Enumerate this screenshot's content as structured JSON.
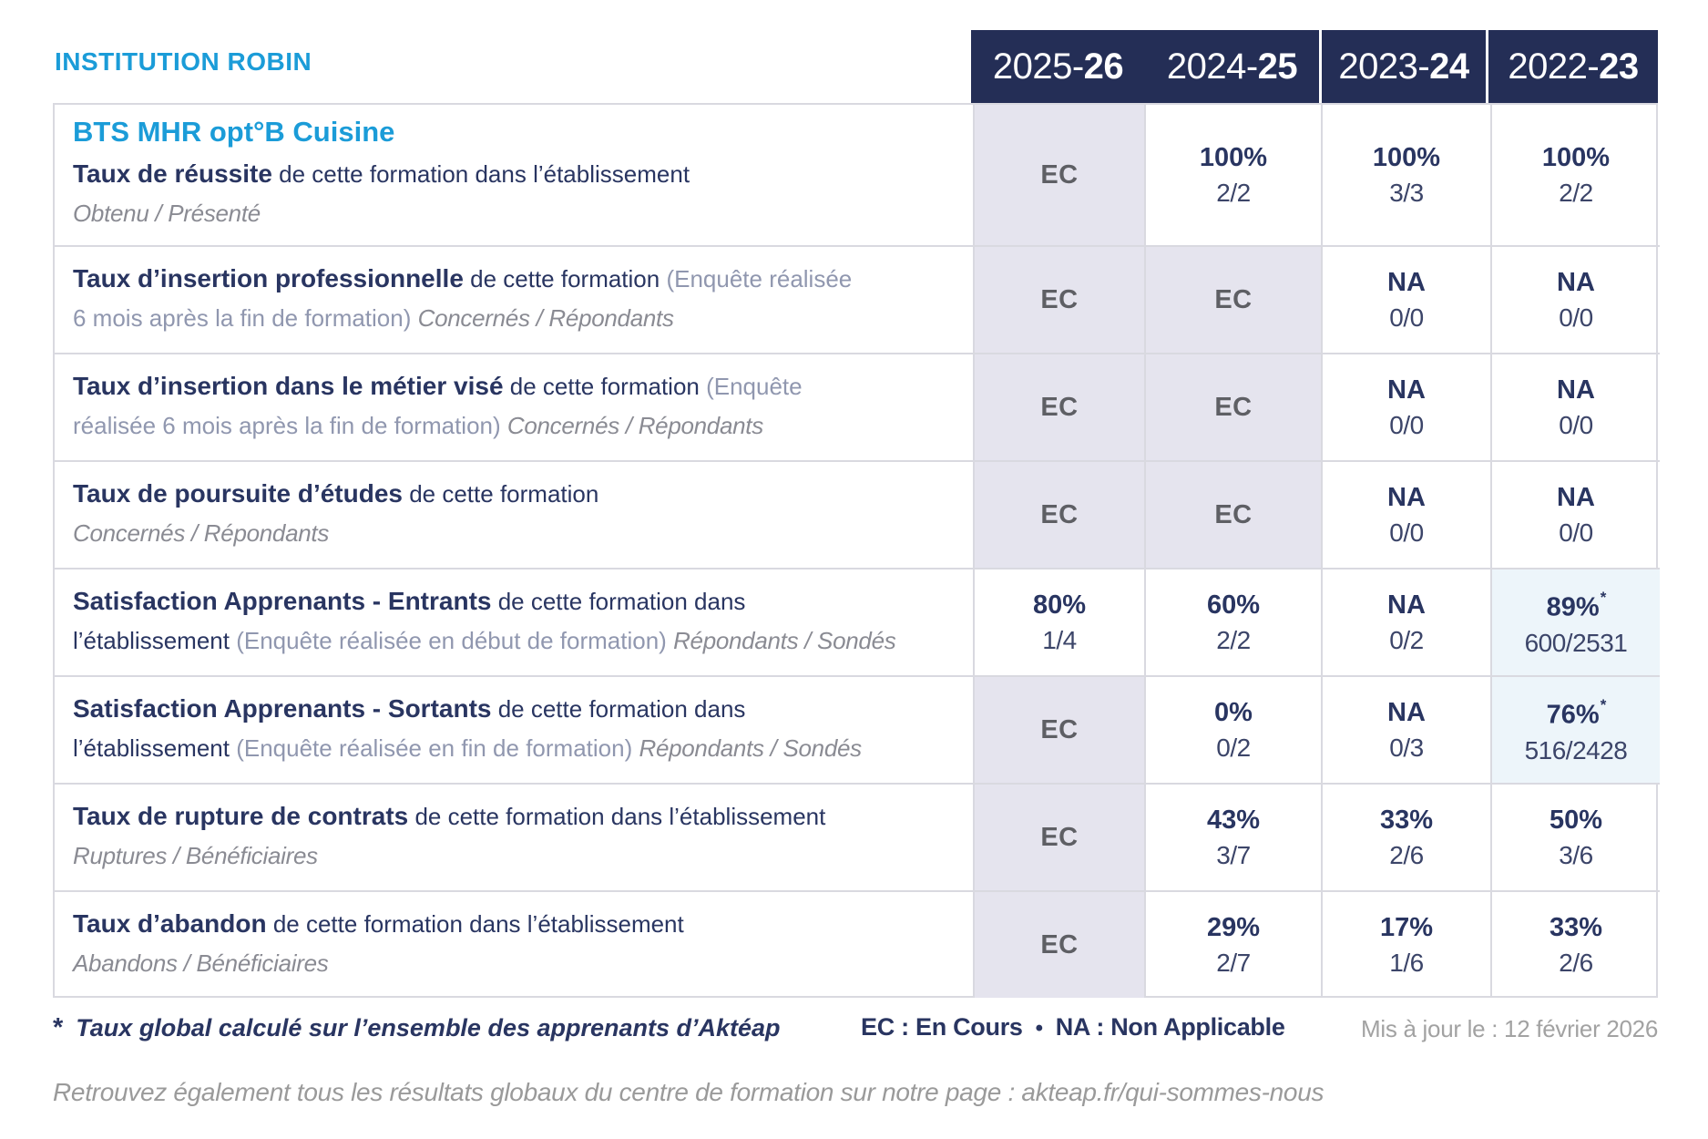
{
  "page": {
    "institution": "INSTITUTION ROBIN"
  },
  "colors": {
    "accent_blue": "#1b9cd8",
    "navy_text": "#293561",
    "header_bg": "#242e56",
    "ec_cell_bg": "#e5e4ee",
    "ec_text": "#5e5f64",
    "highlight_cell_bg": "#edf5fa",
    "border": "#d9d9e0"
  },
  "header": {
    "years": [
      {
        "prefix": "2025-",
        "suffix": "26"
      },
      {
        "prefix": "2024-",
        "suffix": "25"
      },
      {
        "prefix": "2023-",
        "suffix": "24"
      },
      {
        "prefix": "2022-",
        "suffix": "23"
      }
    ]
  },
  "rows": [
    {
      "name": "taux-de-reussite",
      "program": "BTS MHR opt°B Cuisine",
      "lines": [
        [
          {
            "t": "Taux de réussite",
            "s": "b"
          },
          {
            "t": " de cette formation dans l’établissement",
            "s": "r"
          }
        ],
        [
          {
            "t": "Obtenu / Présenté",
            "s": "i"
          }
        ]
      ],
      "cells": [
        {
          "type": "ec",
          "text": "EC"
        },
        {
          "type": "val",
          "pct": "100%",
          "frac": "2/2"
        },
        {
          "type": "val",
          "pct": "100%",
          "frac": "3/3"
        },
        {
          "type": "val",
          "pct": "100%",
          "frac": "2/2"
        }
      ]
    },
    {
      "name": "taux-insertion-professionnelle",
      "lines": [
        [
          {
            "t": "Taux d’insertion professionnelle",
            "s": "b"
          },
          {
            "t": " de cette formation ",
            "s": "r"
          },
          {
            "t": "(Enquête réalisée",
            "s": "m"
          }
        ],
        [
          {
            "t": "6 mois après la fin de formation) ",
            "s": "m"
          },
          {
            "t": "Concernés / Répondants",
            "s": "i"
          }
        ]
      ],
      "cells": [
        {
          "type": "ec",
          "text": "EC"
        },
        {
          "type": "ec",
          "text": "EC"
        },
        {
          "type": "val",
          "pct": "NA",
          "frac": "0/0"
        },
        {
          "type": "val",
          "pct": "NA",
          "frac": "0/0"
        }
      ]
    },
    {
      "name": "taux-insertion-metier-vise",
      "lines": [
        [
          {
            "t": "Taux d’insertion dans le métier visé",
            "s": "b"
          },
          {
            "t": " de cette formation ",
            "s": "r"
          },
          {
            "t": "(Enquête",
            "s": "m"
          }
        ],
        [
          {
            "t": "réalisée 6 mois après la fin de formation) ",
            "s": "m"
          },
          {
            "t": "Concernés / Répondants",
            "s": "i"
          }
        ]
      ],
      "cells": [
        {
          "type": "ec",
          "text": "EC"
        },
        {
          "type": "ec",
          "text": "EC"
        },
        {
          "type": "val",
          "pct": "NA",
          "frac": "0/0"
        },
        {
          "type": "val",
          "pct": "NA",
          "frac": "0/0"
        }
      ]
    },
    {
      "name": "taux-poursuite-etudes",
      "lines": [
        [
          {
            "t": "Taux de poursuite d’études",
            "s": "b"
          },
          {
            "t": " de cette formation",
            "s": "r"
          }
        ],
        [
          {
            "t": "Concernés / Répondants",
            "s": "i"
          }
        ]
      ],
      "cells": [
        {
          "type": "ec",
          "text": "EC"
        },
        {
          "type": "ec",
          "text": "EC"
        },
        {
          "type": "val",
          "pct": "NA",
          "frac": "0/0"
        },
        {
          "type": "val",
          "pct": "NA",
          "frac": "0/0"
        }
      ]
    },
    {
      "name": "satisfaction-apprenants-entrants",
      "lines": [
        [
          {
            "t": "Satisfaction Apprenants - Entrants",
            "s": "b"
          },
          {
            "t": " de cette formation dans",
            "s": "r"
          }
        ],
        [
          {
            "t": "l’établissement ",
            "s": "r"
          },
          {
            "t": "(Enquête réalisée en début de formation) ",
            "s": "m"
          },
          {
            "t": "Répondants / Sondés",
            "s": "i"
          }
        ]
      ],
      "cells": [
        {
          "type": "val",
          "pct": "80%",
          "frac": "1/4"
        },
        {
          "type": "val",
          "pct": "60%",
          "frac": "2/2"
        },
        {
          "type": "val",
          "pct": "NA",
          "frac": "0/2"
        },
        {
          "type": "val",
          "pct": "89%",
          "frac": "600/2531",
          "star": true,
          "hl": true
        }
      ]
    },
    {
      "name": "satisfaction-apprenants-sortants",
      "lines": [
        [
          {
            "t": "Satisfaction Apprenants - Sortants",
            "s": "b"
          },
          {
            "t": " de cette formation dans",
            "s": "r"
          }
        ],
        [
          {
            "t": "l’établissement ",
            "s": "r"
          },
          {
            "t": "(Enquête réalisée en fin de formation) ",
            "s": "m"
          },
          {
            "t": "Répondants / Sondés",
            "s": "i"
          }
        ]
      ],
      "cells": [
        {
          "type": "ec",
          "text": "EC"
        },
        {
          "type": "val",
          "pct": "0%",
          "frac": "0/2"
        },
        {
          "type": "val",
          "pct": "NA",
          "frac": "0/3"
        },
        {
          "type": "val",
          "pct": "76%",
          "frac": "516/2428",
          "star": true,
          "hl": true
        }
      ]
    },
    {
      "name": "taux-rupture-contrats",
      "lines": [
        [
          {
            "t": "Taux de rupture de contrats",
            "s": "b"
          },
          {
            "t": " de cette formation dans l’établissement",
            "s": "r"
          }
        ],
        [
          {
            "t": "Ruptures / Bénéficiaires",
            "s": "i"
          }
        ]
      ],
      "cells": [
        {
          "type": "ec",
          "text": "EC"
        },
        {
          "type": "val",
          "pct": "43%",
          "frac": "3/7"
        },
        {
          "type": "val",
          "pct": "33%",
          "frac": "2/6"
        },
        {
          "type": "val",
          "pct": "50%",
          "frac": "3/6"
        }
      ]
    },
    {
      "name": "taux-abandon",
      "lines": [
        [
          {
            "t": "Taux d’abandon",
            "s": "b"
          },
          {
            "t": " de cette formation dans l’établissement",
            "s": "r"
          }
        ],
        [
          {
            "t": "Abandons / Bénéficiaires",
            "s": "i"
          }
        ]
      ],
      "cells": [
        {
          "type": "ec",
          "text": "EC"
        },
        {
          "type": "val",
          "pct": "29%",
          "frac": "2/7"
        },
        {
          "type": "val",
          "pct": "17%",
          "frac": "1/6"
        },
        {
          "type": "val",
          "pct": "33%",
          "frac": "2/6"
        }
      ]
    }
  ],
  "footer": {
    "asterisk": "*",
    "note": "Taux global calculé sur l’ensemble des apprenants d’Aktéap",
    "legend_ec": "EC : En Cours",
    "bullet": "•",
    "legend_na": "NA : Non Applicable",
    "updated": "Mis à jour le : 12 février 2026",
    "bottom_line": "Retrouvez également tous les résultats globaux du centre de formation sur notre page : akteap.fr/qui-sommes-nous"
  }
}
